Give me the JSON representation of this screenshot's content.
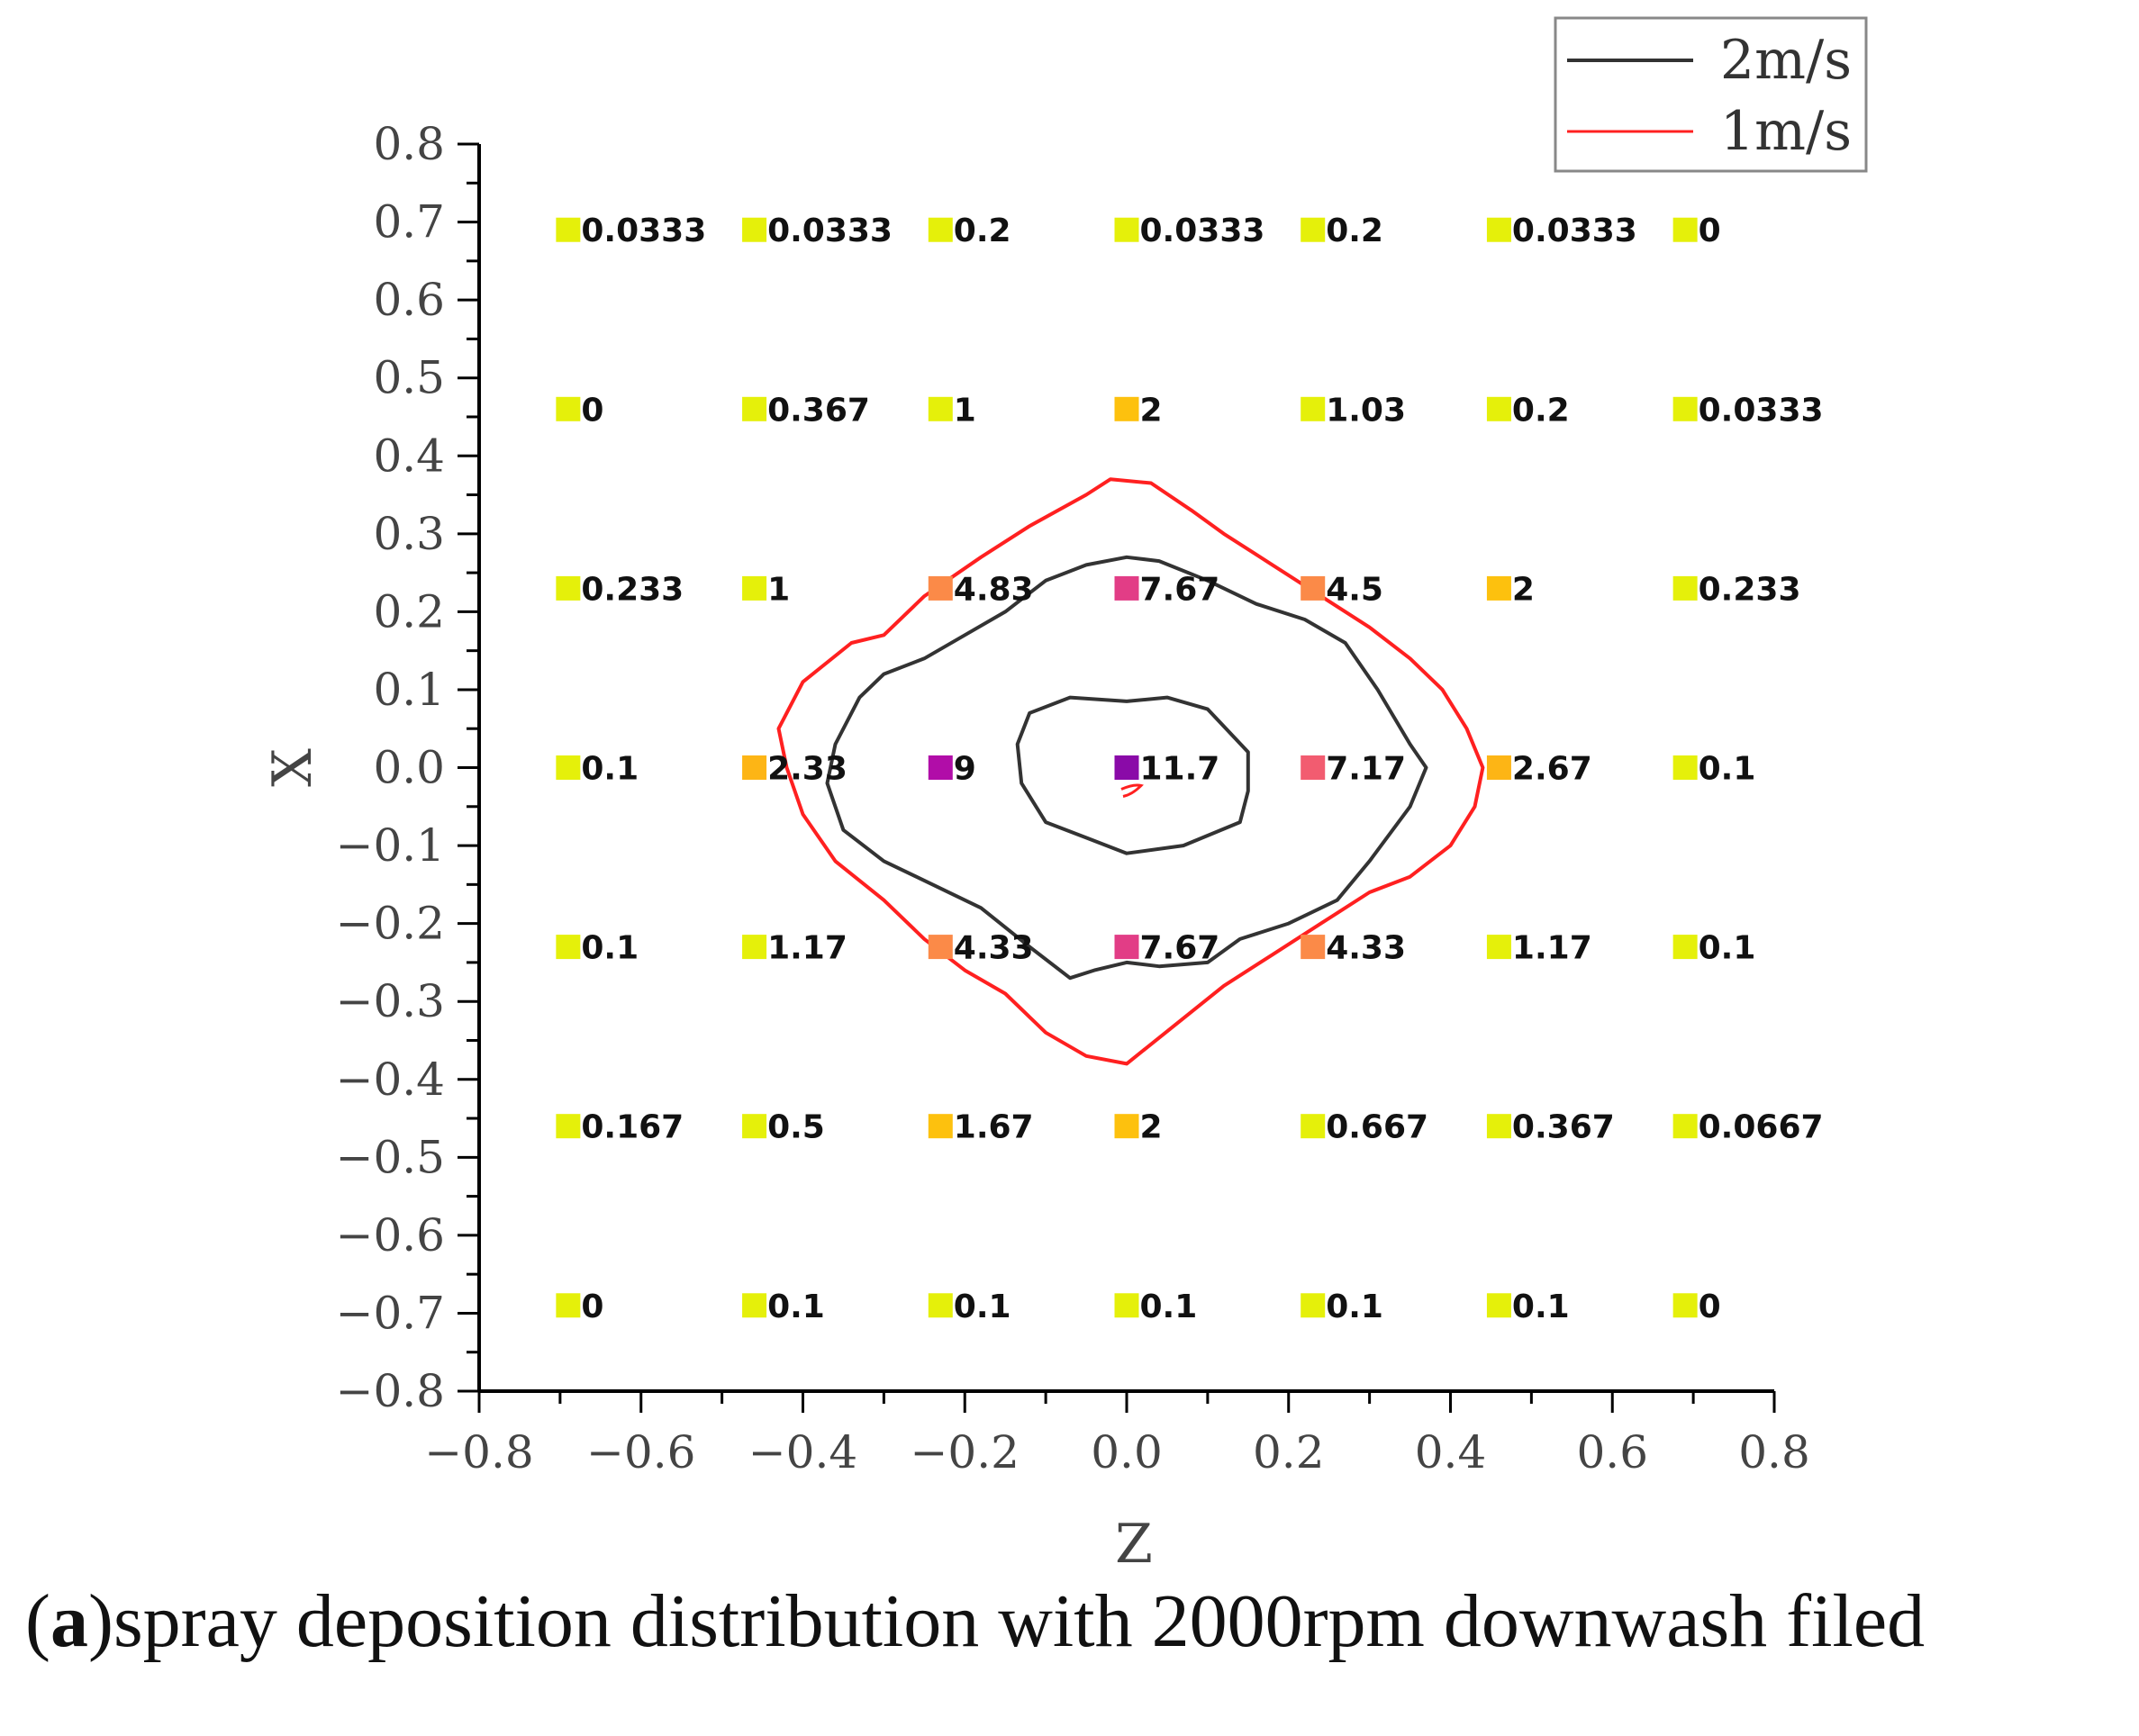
{
  "chart_data": {
    "type": "scatter",
    "title": "",
    "xlabel": "Z",
    "ylabel": "X",
    "xlim": [
      -0.8,
      0.8
    ],
    "ylim": [
      -0.8,
      0.8
    ],
    "xticks": [
      "−0.8",
      "−0.6",
      "−0.4",
      "−0.2",
      "0.0",
      "0.2",
      "0.4",
      "0.6",
      "0.8"
    ],
    "yticks": [
      "0.8",
      "0.7",
      "0.6",
      "0.5",
      "0.4",
      "0.3",
      "0.2",
      "0.1",
      "0.0",
      "−0.1",
      "−0.2",
      "−0.3",
      "−0.4",
      "−0.5",
      "−0.6",
      "−0.7",
      "−0.8"
    ],
    "grid": false,
    "legend": {
      "position": "top-right",
      "entries": [
        {
          "label": "2m/s",
          "color": "#333333"
        },
        {
          "label": "1m/s",
          "color": "#ff2020"
        }
      ]
    },
    "points": [
      {
        "z": -0.69,
        "x": 0.69,
        "label": "0.0333"
      },
      {
        "z": -0.46,
        "x": 0.69,
        "label": "0.0333"
      },
      {
        "z": -0.23,
        "x": 0.69,
        "label": "0.2"
      },
      {
        "z": 0.0,
        "x": 0.69,
        "label": "0.0333"
      },
      {
        "z": 0.23,
        "x": 0.69,
        "label": "0.2"
      },
      {
        "z": 0.46,
        "x": 0.69,
        "label": "0.0333"
      },
      {
        "z": 0.69,
        "x": 0.69,
        "label": "0"
      },
      {
        "z": -0.69,
        "x": 0.46,
        "label": "0"
      },
      {
        "z": -0.46,
        "x": 0.46,
        "label": "0.367"
      },
      {
        "z": -0.23,
        "x": 0.46,
        "label": "1"
      },
      {
        "z": 0.0,
        "x": 0.46,
        "label": "2"
      },
      {
        "z": 0.23,
        "x": 0.46,
        "label": "1.03"
      },
      {
        "z": 0.46,
        "x": 0.46,
        "label": "0.2"
      },
      {
        "z": 0.69,
        "x": 0.46,
        "label": "0.0333"
      },
      {
        "z": -0.69,
        "x": 0.23,
        "label": "0.233"
      },
      {
        "z": -0.46,
        "x": 0.23,
        "label": "1"
      },
      {
        "z": -0.23,
        "x": 0.23,
        "label": "4.83"
      },
      {
        "z": 0.0,
        "x": 0.23,
        "label": "7.67"
      },
      {
        "z": 0.23,
        "x": 0.23,
        "label": "4.5"
      },
      {
        "z": 0.46,
        "x": 0.23,
        "label": "2"
      },
      {
        "z": 0.69,
        "x": 0.23,
        "label": "0.233"
      },
      {
        "z": -0.69,
        "x": 0.0,
        "label": "0.1"
      },
      {
        "z": -0.46,
        "x": 0.0,
        "label": "2.33"
      },
      {
        "z": -0.23,
        "x": 0.0,
        "label": "9"
      },
      {
        "z": 0.0,
        "x": 0.0,
        "label": "11.7"
      },
      {
        "z": 0.23,
        "x": 0.0,
        "label": "7.17"
      },
      {
        "z": 0.46,
        "x": 0.0,
        "label": "2.67"
      },
      {
        "z": 0.69,
        "x": 0.0,
        "label": "0.1"
      },
      {
        "z": -0.69,
        "x": -0.23,
        "label": "0.1"
      },
      {
        "z": -0.46,
        "x": -0.23,
        "label": "1.17"
      },
      {
        "z": -0.23,
        "x": -0.23,
        "label": "4.33"
      },
      {
        "z": 0.0,
        "x": -0.23,
        "label": "7.67"
      },
      {
        "z": 0.23,
        "x": -0.23,
        "label": "4.33"
      },
      {
        "z": 0.46,
        "x": -0.23,
        "label": "1.17"
      },
      {
        "z": 0.69,
        "x": -0.23,
        "label": "0.1"
      },
      {
        "z": -0.69,
        "x": -0.46,
        "label": "0.167"
      },
      {
        "z": -0.46,
        "x": -0.46,
        "label": "0.5"
      },
      {
        "z": -0.23,
        "x": -0.46,
        "label": "1.67"
      },
      {
        "z": 0.0,
        "x": -0.46,
        "label": "2"
      },
      {
        "z": 0.23,
        "x": -0.46,
        "label": "0.667"
      },
      {
        "z": 0.46,
        "x": -0.46,
        "label": "0.367"
      },
      {
        "z": 0.69,
        "x": -0.46,
        "label": "0.0667"
      },
      {
        "z": -0.69,
        "x": -0.69,
        "label": "0"
      },
      {
        "z": -0.46,
        "x": -0.69,
        "label": "0.1"
      },
      {
        "z": -0.23,
        "x": -0.69,
        "label": "0.1"
      },
      {
        "z": 0.0,
        "x": -0.69,
        "label": "0.1"
      },
      {
        "z": 0.23,
        "x": -0.69,
        "label": "0.1"
      },
      {
        "z": 0.46,
        "x": -0.69,
        "label": "0.1"
      },
      {
        "z": 0.69,
        "x": -0.69,
        "label": "0"
      }
    ],
    "contours": [
      {
        "name": "2m/s",
        "color": "#333333",
        "description": "inner ring",
        "points": [
          [
            -0.07,
            0.09
          ],
          [
            0.0,
            0.085
          ],
          [
            0.05,
            0.09
          ],
          [
            0.1,
            0.075
          ],
          [
            0.15,
            0.02
          ],
          [
            0.15,
            -0.03
          ],
          [
            0.14,
            -0.07
          ],
          [
            0.07,
            -0.1
          ],
          [
            0.0,
            -0.11
          ],
          [
            -0.05,
            -0.09
          ],
          [
            -0.1,
            -0.07
          ],
          [
            -0.13,
            -0.02
          ],
          [
            -0.135,
            0.03
          ],
          [
            -0.12,
            0.07
          ]
        ]
      },
      {
        "name": "2m/s",
        "color": "#333333",
        "description": "outer ring",
        "points": [
          [
            -0.05,
            0.26
          ],
          [
            0.0,
            0.27
          ],
          [
            0.04,
            0.265
          ],
          [
            0.1,
            0.24
          ],
          [
            0.16,
            0.21
          ],
          [
            0.22,
            0.19
          ],
          [
            0.27,
            0.16
          ],
          [
            0.31,
            0.1
          ],
          [
            0.35,
            0.03
          ],
          [
            0.37,
            0.0
          ],
          [
            0.35,
            -0.05
          ],
          [
            0.3,
            -0.12
          ],
          [
            0.26,
            -0.17
          ],
          [
            0.2,
            -0.2
          ],
          [
            0.14,
            -0.22
          ],
          [
            0.1,
            -0.25
          ],
          [
            0.04,
            -0.255
          ],
          [
            0.0,
            -0.25
          ],
          [
            -0.04,
            -0.26
          ],
          [
            -0.07,
            -0.27
          ],
          [
            -0.12,
            -0.23
          ],
          [
            -0.18,
            -0.18
          ],
          [
            -0.24,
            -0.15
          ],
          [
            -0.3,
            -0.12
          ],
          [
            -0.35,
            -0.08
          ],
          [
            -0.37,
            -0.02
          ],
          [
            -0.36,
            0.03
          ],
          [
            -0.33,
            0.09
          ],
          [
            -0.3,
            0.12
          ],
          [
            -0.25,
            0.14
          ],
          [
            -0.2,
            0.17
          ],
          [
            -0.15,
            0.2
          ],
          [
            -0.1,
            0.24
          ]
        ]
      },
      {
        "name": "1m/s",
        "color": "#ff2020",
        "description": "outer ring",
        "points": [
          [
            -0.05,
            0.35
          ],
          [
            -0.02,
            0.37
          ],
          [
            0.03,
            0.365
          ],
          [
            0.08,
            0.33
          ],
          [
            0.12,
            0.3
          ],
          [
            0.18,
            0.26
          ],
          [
            0.24,
            0.22
          ],
          [
            0.3,
            0.18
          ],
          [
            0.35,
            0.14
          ],
          [
            0.39,
            0.1
          ],
          [
            0.42,
            0.05
          ],
          [
            0.44,
            0.0
          ],
          [
            0.43,
            -0.05
          ],
          [
            0.4,
            -0.1
          ],
          [
            0.35,
            -0.14
          ],
          [
            0.3,
            -0.16
          ],
          [
            0.24,
            -0.2
          ],
          [
            0.18,
            -0.24
          ],
          [
            0.12,
            -0.28
          ],
          [
            0.06,
            -0.33
          ],
          [
            0.0,
            -0.38
          ],
          [
            -0.05,
            -0.37
          ],
          [
            -0.1,
            -0.34
          ],
          [
            -0.15,
            -0.29
          ],
          [
            -0.2,
            -0.26
          ],
          [
            -0.25,
            -0.22
          ],
          [
            -0.3,
            -0.17
          ],
          [
            -0.36,
            -0.12
          ],
          [
            -0.4,
            -0.06
          ],
          [
            -0.42,
            0.0
          ],
          [
            -0.43,
            0.05
          ],
          [
            -0.4,
            0.11
          ],
          [
            -0.34,
            0.16
          ],
          [
            -0.3,
            0.17
          ],
          [
            -0.25,
            0.22
          ],
          [
            -0.18,
            0.27
          ],
          [
            -0.12,
            0.31
          ]
        ]
      }
    ]
  },
  "caption": {
    "label": "a",
    "text": ")spray deposition distribution with 2000rpm downwash filed"
  }
}
